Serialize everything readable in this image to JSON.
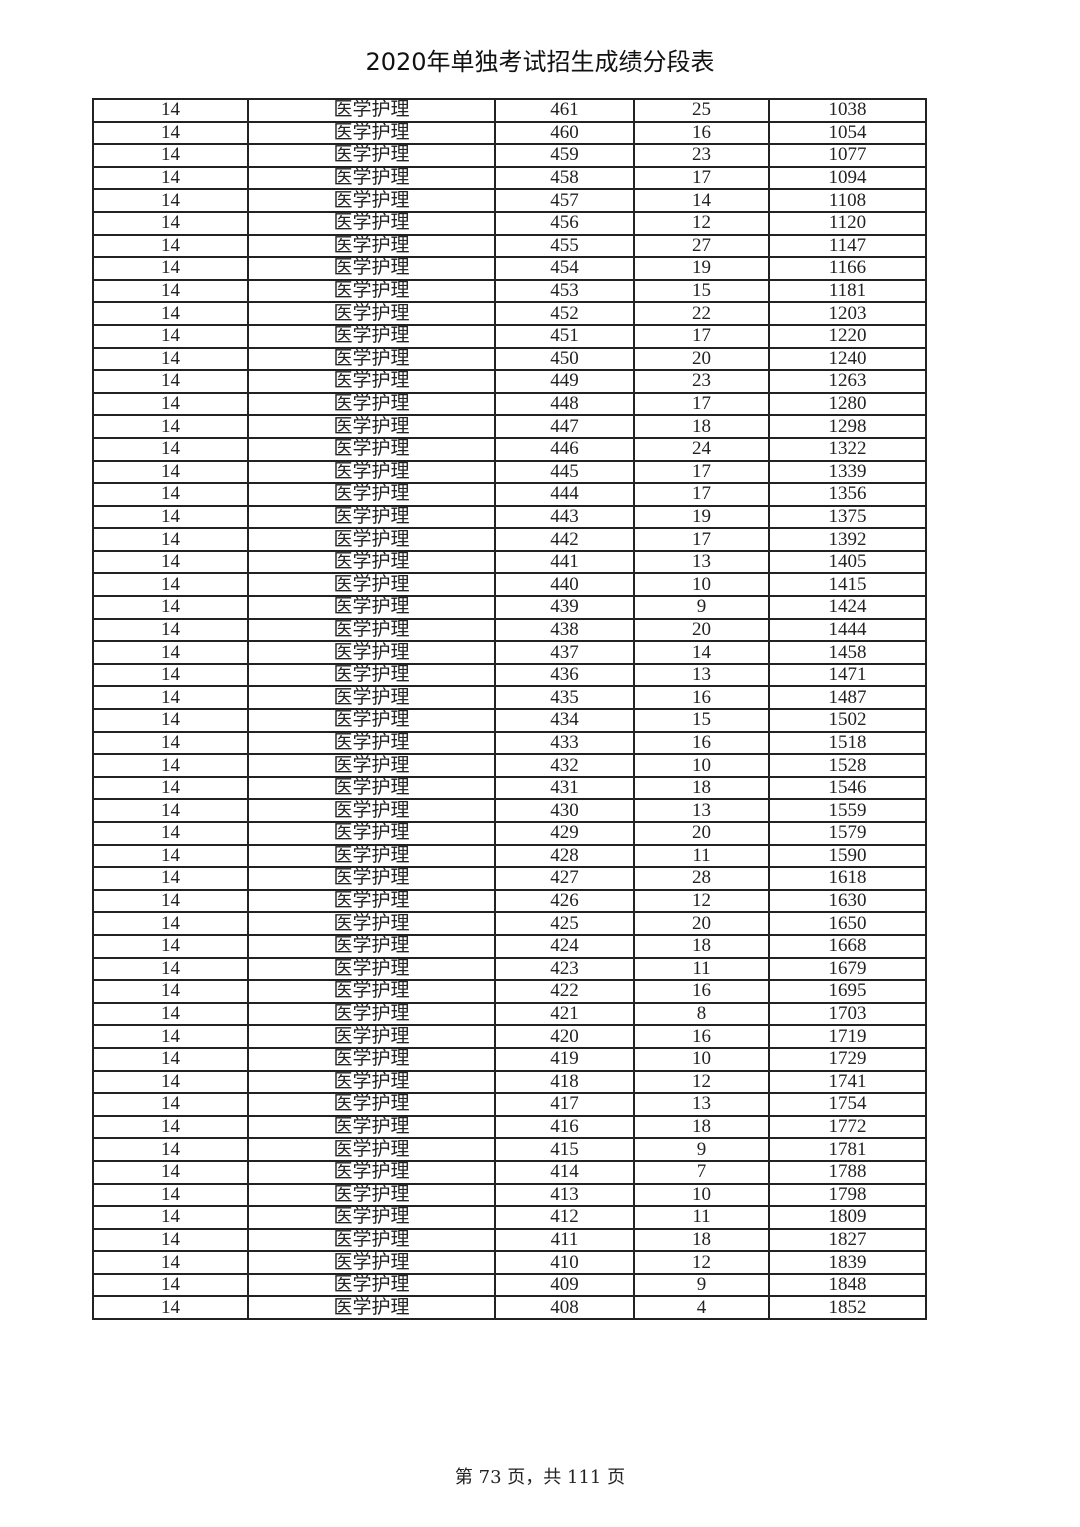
{
  "title": "2020年单独考试招生成绩分段表",
  "table": {
    "category_code": "14",
    "major": "医学护理",
    "scores": [
      461,
      460,
      459,
      458,
      457,
      456,
      455,
      454,
      453,
      452,
      451,
      450,
      449,
      448,
      447,
      446,
      445,
      444,
      443,
      442,
      441,
      440,
      439,
      438,
      437,
      436,
      435,
      434,
      433,
      432,
      431,
      430,
      429,
      428,
      427,
      426,
      425,
      424,
      423,
      422,
      421,
      420,
      419,
      418,
      417,
      416,
      415,
      414,
      413,
      412,
      411,
      410,
      409,
      408
    ],
    "counts": [
      25,
      16,
      23,
      17,
      14,
      12,
      27,
      19,
      15,
      22,
      17,
      20,
      23,
      17,
      18,
      24,
      17,
      17,
      19,
      17,
      13,
      10,
      9,
      20,
      14,
      13,
      16,
      15,
      16,
      10,
      18,
      13,
      20,
      11,
      28,
      12,
      20,
      18,
      11,
      16,
      8,
      16,
      10,
      12,
      13,
      18,
      9,
      7,
      10,
      11,
      18,
      12,
      9,
      4
    ],
    "cumulative": [
      1038,
      1054,
      1077,
      1094,
      1108,
      1120,
      1147,
      1166,
      1181,
      1203,
      1220,
      1240,
      1263,
      1280,
      1298,
      1322,
      1339,
      1356,
      1375,
      1392,
      1405,
      1415,
      1424,
      1444,
      1458,
      1471,
      1487,
      1502,
      1518,
      1528,
      1546,
      1559,
      1579,
      1590,
      1618,
      1630,
      1650,
      1668,
      1679,
      1695,
      1703,
      1719,
      1729,
      1741,
      1754,
      1772,
      1781,
      1788,
      1798,
      1809,
      1827,
      1839,
      1848,
      1852
    ]
  },
  "footer": "第 73 页，共 111 页"
}
